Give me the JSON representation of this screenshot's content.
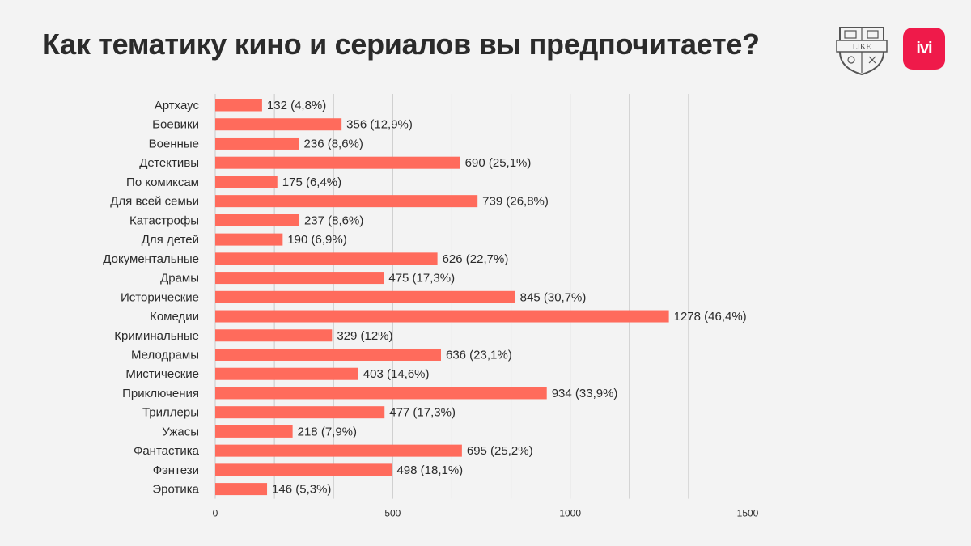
{
  "header": {
    "title": "Как тематику кино и сериалов вы предпочитаете?",
    "like_logo_text": "LIKE",
    "ivi_logo_text": "ivi"
  },
  "colors": {
    "bar": "#ff6b5c",
    "grid": "#c9c9c9",
    "background": "#f3f3f3",
    "text": "#2b2b2b",
    "ivi_brand": "#ef1a4a"
  },
  "chart_data": {
    "type": "bar",
    "orientation": "horizontal",
    "title": "Как тематику кино и сериалов вы предпочитаете?",
    "xlabel": "",
    "ylabel": "",
    "xlim": [
      0,
      1500
    ],
    "x_ticks": [
      0,
      500,
      1000,
      1500
    ],
    "grid": "vertical",
    "categories": [
      "Артхаус",
      "Боевики",
      "Военные",
      "Детективы",
      "По комиксам",
      "Для всей семьи",
      "Катастрофы",
      "Для детей",
      "Документальные",
      "Драмы",
      "Исторические",
      "Комедии",
      "Криминальные",
      "Мелодрамы",
      "Мистические",
      "Приключения",
      "Триллеры",
      "Ужасы",
      "Фантастика",
      "Фэнтези",
      "Эротика"
    ],
    "values": [
      132,
      356,
      236,
      690,
      175,
      739,
      237,
      190,
      626,
      475,
      845,
      1278,
      329,
      636,
      403,
      934,
      477,
      218,
      695,
      498,
      146
    ],
    "data_labels": [
      "132 (4,8%)",
      "356 (12,9%)",
      "236 (8,6%)",
      "690 (25,1%)",
      "175 (6,4%)",
      "739 (26,8%)",
      "237 (8,6%)",
      "190 (6,9%)",
      "626 (22,7%)",
      "475 (17,3%)",
      "845 (30,7%)",
      "1278 (46,4%)",
      "329 (12%)",
      "636 (23,1%)",
      "403 (14,6%)",
      "934 (33,9%)",
      "477 (17,3%)",
      "218 (7,9%)",
      "695 (25,2%)",
      "498 (18,1%)",
      "146 (5,3%)"
    ]
  }
}
